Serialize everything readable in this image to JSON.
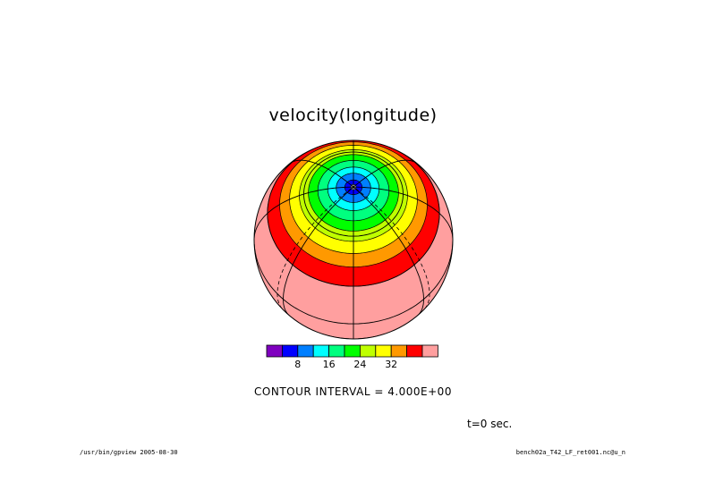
{
  "title": "velocity(longitude)",
  "contour_interval": "CONTOUR INTERVAL = 4.000E+00",
  "time_label": "t=0 sec.",
  "footer_left": "/usr/bin/gpview  2005-08-30",
  "footer_right": "bench02a_T42_LF_ret001.nc@u_n",
  "colorbar": {
    "colors": [
      "#7f00bf",
      "#0000ff",
      "#007fff",
      "#00ffff",
      "#00ff7f",
      "#00ff00",
      "#bfff00",
      "#ffff00",
      "#ff9900",
      "#ff0000",
      "#ff9f9f"
    ],
    "tick_labels": [
      "8",
      "16",
      "24",
      "32"
    ]
  },
  "map": {
    "projection": "orthographic",
    "field": "zonal velocity",
    "contour_levels": [
      0,
      4,
      8,
      12,
      16,
      20,
      24,
      28,
      32,
      36,
      40
    ],
    "band_colors": [
      "#7f00bf",
      "#0000ff",
      "#007fff",
      "#00ffff",
      "#00ff7f",
      "#00ff00",
      "#bfff00",
      "#ffff00",
      "#ff9900",
      "#ff0000",
      "#ff9f9f"
    ]
  }
}
